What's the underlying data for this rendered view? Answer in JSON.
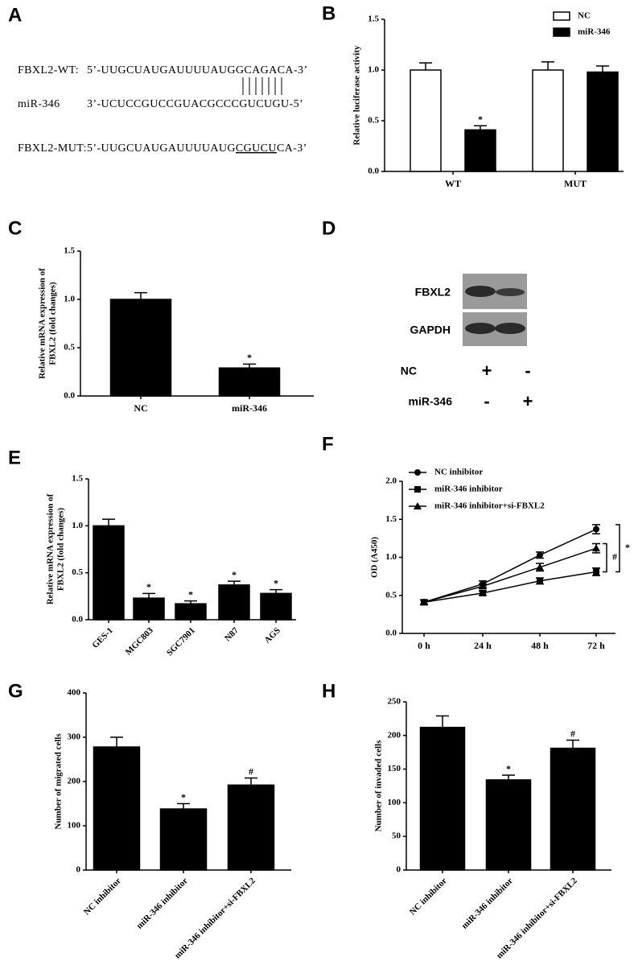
{
  "sequences": {
    "panel": "A",
    "wt": {
      "label": "FBXL2-WT:",
      "sequence": "5’-UUGCUAUGAUUUUAUGGCAGACA-3’"
    },
    "mir": {
      "label": "miR-346",
      "sequence": "3’-UCUCCGUCCGUACGCCCGUCUGU-5’"
    },
    "mut": {
      "label": "FBXL2-MUT:",
      "sequence_parts": [
        "5’-UUGCUAUGAUUUUAUG",
        "CGUCU",
        "CA-3’"
      ]
    }
  },
  "blot": {
    "panel": "D",
    "rows": [
      "FBXL2",
      "GAPDH"
    ],
    "conditions": [
      {
        "label": "NC",
        "signs": [
          "+",
          "-"
        ]
      },
      {
        "label": "miR-346",
        "signs": [
          "-",
          "+"
        ]
      }
    ]
  },
  "chart_data": [
    {
      "panel": "B",
      "type": "grouped-bar",
      "ylabel": [
        "Relative luciferase activity"
      ],
      "categories": [
        "WT",
        "MUT"
      ],
      "series": [
        {
          "name": "NC",
          "color": "#ffffff",
          "values": [
            1.0,
            1.0
          ],
          "errors": [
            0.07,
            0.08
          ],
          "significance": [
            null,
            null
          ]
        },
        {
          "name": "miR-346",
          "color": "#000000",
          "values": [
            0.41,
            0.98
          ],
          "errors": [
            0.04,
            0.06
          ],
          "significance": [
            "*",
            null
          ]
        }
      ],
      "ylim": [
        0,
        1.5
      ],
      "yticks": [
        {
          "value": 0,
          "label": "0.0"
        },
        {
          "value": 0.5,
          "label": "0.5"
        },
        {
          "value": 1.0,
          "label": "1.0"
        },
        {
          "value": 1.5,
          "label": "1.5"
        }
      ],
      "legend": "upper right"
    },
    {
      "panel": "C",
      "type": "bar",
      "ylabel": [
        "Relative mRNA expression of",
        "FBXL2 (fold changes)"
      ],
      "categories": [
        "NC",
        "miR-346"
      ],
      "values": [
        1.0,
        0.29
      ],
      "errors": [
        0.07,
        0.04
      ],
      "significance": [
        null,
        "*"
      ],
      "color": "#000000",
      "ylim": [
        0,
        1.5
      ],
      "yticks": [
        {
          "value": 0,
          "label": "0.0"
        },
        {
          "value": 0.5,
          "label": "0.5"
        },
        {
          "value": 1.0,
          "label": "1.0"
        },
        {
          "value": 1.5,
          "label": "1.5"
        }
      ]
    },
    {
      "panel": "E",
      "type": "bar",
      "ylabel": [
        "Relative mRNA expression of",
        "FBXL2 (fold changes)"
      ],
      "categories": [
        "GES-1",
        "MGC803",
        "SGC7901",
        "N87",
        "AGS"
      ],
      "values": [
        1.0,
        0.23,
        0.17,
        0.37,
        0.28
      ],
      "errors": [
        0.07,
        0.05,
        0.03,
        0.04,
        0.04
      ],
      "significance": [
        null,
        "*",
        "*",
        "*",
        "*"
      ],
      "color": "#000000",
      "ylim": [
        0,
        1.5
      ],
      "yticks": [
        {
          "value": 0,
          "label": "0.0"
        },
        {
          "value": 0.5,
          "label": "0.5"
        },
        {
          "value": 1.0,
          "label": "1.0"
        },
        {
          "value": 1.5,
          "label": "1.5"
        }
      ]
    },
    {
      "panel": "F",
      "type": "line",
      "ylabel": [
        "OD (A450)"
      ],
      "categories": [
        "0 h",
        "24 h",
        "48 h",
        "72 h"
      ],
      "series": [
        {
          "name": "NC inhibitor",
          "color": "#000000",
          "marker": "circle",
          "values": [
            0.41,
            0.65,
            1.03,
            1.37
          ],
          "errors": [
            0.03,
            0.04,
            0.04,
            0.06
          ]
        },
        {
          "name": "miR-346 inhibitor",
          "color": "#000000",
          "marker": "square",
          "values": [
            0.41,
            0.53,
            0.69,
            0.81
          ],
          "errors": [
            0.03,
            0.03,
            0.04,
            0.05
          ]
        },
        {
          "name": "miR-346 inhibitor+si-FBXL2",
          "color": "#000000",
          "marker": "triangle",
          "values": [
            0.41,
            0.62,
            0.87,
            1.12
          ],
          "errors": [
            0.03,
            0.03,
            0.05,
            0.06
          ]
        }
      ],
      "brackets": [
        "#",
        "*"
      ],
      "ylim": [
        0,
        2.0
      ],
      "yticks": [
        {
          "value": 0,
          "label": "0.0"
        },
        {
          "value": 0.5,
          "label": "0.5"
        },
        {
          "value": 1.0,
          "label": "1.0"
        },
        {
          "value": 1.5,
          "label": "1.5"
        },
        {
          "value": 2.0,
          "label": "2.0"
        }
      ],
      "legend": "upper left"
    },
    {
      "panel": "G",
      "type": "bar",
      "ylabel": [
        "Number of migrated cells"
      ],
      "categories": [
        "NC inhibitor",
        "miR-346 inhibitor",
        "miR-346 inhibitor+si-FBXL2"
      ],
      "values": [
        278,
        138,
        192
      ],
      "errors": [
        22,
        12,
        16
      ],
      "significance": [
        null,
        "*",
        "#"
      ],
      "color": "#000000",
      "ylim": [
        0,
        400
      ],
      "yticks": [
        0,
        100,
        200,
        300,
        400
      ]
    },
    {
      "panel": "H",
      "type": "bar",
      "ylabel": [
        "Number of invaded cells"
      ],
      "categories": [
        "NC inhibitor",
        "miR-346 inhibitor",
        "miR-346 inhibitor+si-FBXL2"
      ],
      "values": [
        212,
        134,
        181
      ],
      "errors": [
        17,
        7,
        12
      ],
      "significance": [
        null,
        "*",
        "#"
      ],
      "color": "#000000",
      "ylim": [
        0,
        250
      ],
      "yticks": [
        0,
        50,
        100,
        150,
        200,
        250
      ]
    }
  ]
}
